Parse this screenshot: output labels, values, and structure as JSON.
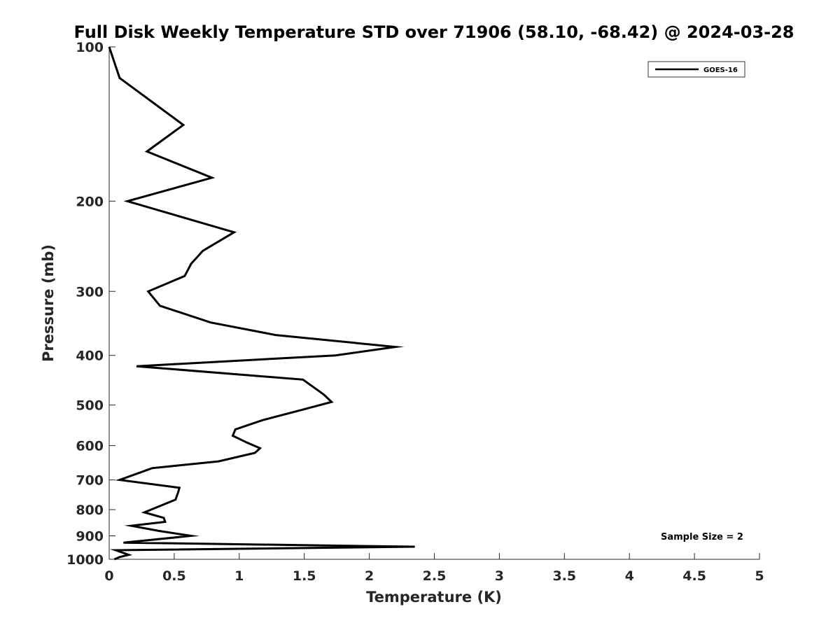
{
  "chart_data": {
    "type": "line",
    "title": "Full Disk Weekly Temperature STD over 71906 (58.10, -68.42) @ 2024-03-28",
    "xlabel": "Temperature (K)",
    "ylabel": "Pressure (mb)",
    "xlim": [
      0,
      5
    ],
    "ylim": [
      100,
      1000
    ],
    "y_scale": "log",
    "y_reversed": true,
    "grid": false,
    "x_ticks": [
      0,
      0.5,
      1,
      1.5,
      2,
      2.5,
      3,
      3.5,
      4,
      4.5,
      5
    ],
    "x_tick_labels": [
      "0",
      "0.5",
      "1",
      "1.5",
      "2",
      "2.5",
      "3",
      "3.5",
      "4",
      "4.5",
      "5"
    ],
    "y_ticks": [
      100,
      200,
      300,
      400,
      500,
      600,
      700,
      800,
      900,
      1000
    ],
    "y_tick_labels": [
      "100",
      "200",
      "300",
      "400",
      "500",
      "600",
      "700",
      "800",
      "900",
      "1000"
    ],
    "legend_position": "top-right",
    "annotation": "Sample Size = 2",
    "series": [
      {
        "name": "GOES-16",
        "color": "#000000",
        "points": [
          [
            0.0,
            100
          ],
          [
            0.08,
            115
          ],
          [
            0.57,
            142
          ],
          [
            0.29,
            160
          ],
          [
            0.79,
            180
          ],
          [
            0.14,
            200
          ],
          [
            0.96,
            230
          ],
          [
            0.72,
            250
          ],
          [
            0.63,
            265
          ],
          [
            0.58,
            280
          ],
          [
            0.3,
            300
          ],
          [
            0.39,
            320
          ],
          [
            0.78,
            345
          ],
          [
            1.28,
            365
          ],
          [
            2.2,
            385
          ],
          [
            1.74,
            400
          ],
          [
            0.21,
            420
          ],
          [
            1.49,
            446
          ],
          [
            1.65,
            477
          ],
          [
            1.71,
            493
          ],
          [
            1.48,
            511
          ],
          [
            1.18,
            535
          ],
          [
            0.97,
            558
          ],
          [
            0.95,
            574
          ],
          [
            1.06,
            592
          ],
          [
            1.16,
            607
          ],
          [
            1.12,
            620
          ],
          [
            0.84,
            644
          ],
          [
            0.33,
            664
          ],
          [
            0.08,
            700
          ],
          [
            0.54,
            725
          ],
          [
            0.53,
            740
          ],
          [
            0.51,
            765
          ],
          [
            0.27,
            810
          ],
          [
            0.42,
            830
          ],
          [
            0.43,
            845
          ],
          [
            0.17,
            860
          ],
          [
            0.38,
            880
          ],
          [
            0.63,
            900
          ],
          [
            0.11,
            928
          ],
          [
            2.35,
            945
          ],
          [
            0.05,
            960
          ],
          [
            0.15,
            980
          ],
          [
            0.08,
            990
          ],
          [
            0.04,
            1000
          ]
        ]
      }
    ]
  }
}
